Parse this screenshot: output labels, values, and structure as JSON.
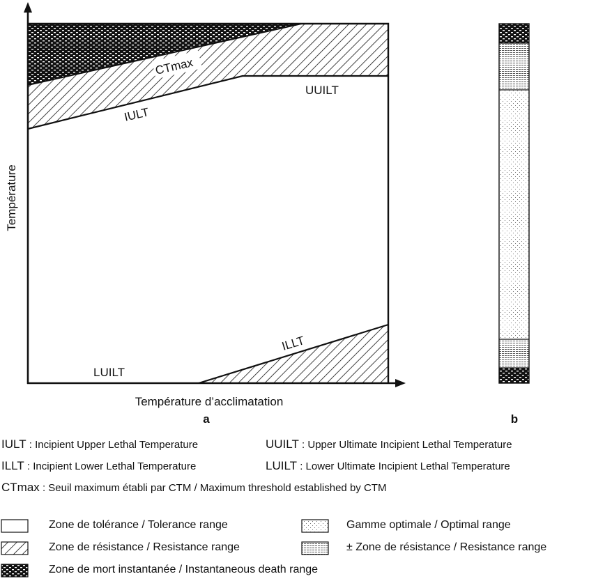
{
  "figure": {
    "panel_a": {
      "y_axis_label": "Température",
      "x_axis_label": "Température d’acclimatation",
      "panel_label": "a",
      "curve_labels": {
        "ctmax": "CTmax",
        "uuilt": "UUILT",
        "iult": "IULT",
        "illt": "ILLT",
        "luilt": "LUILT"
      }
    },
    "panel_b": {
      "panel_label": "b"
    }
  },
  "abbreviations": [
    {
      "key": "IULT",
      "text": " : Incipient Upper Lethal Temperature"
    },
    {
      "key": "UUILT",
      "text": " : Upper Ultimate Incipient Lethal Temperature"
    },
    {
      "key": "ILLT",
      "text": " : Incipient Lower Lethal Temperature"
    },
    {
      "key": "LUILT",
      "text": " : Lower Ultimate Incipient Lethal Temperature"
    },
    {
      "key": "CTmax",
      "text": " : Seuil maximum établi par CTM / Maximum threshold established by CTM"
    }
  ],
  "legend": [
    {
      "pattern": "blank",
      "label": "Zone de tolérance / Tolerance range"
    },
    {
      "pattern": "dots",
      "label": "Gamme optimale / Optimal range"
    },
    {
      "pattern": "hatch",
      "label": "Zone de résistance / Resistance range"
    },
    {
      "pattern": "lines",
      "label": "± Zone de résistance / Resistance range"
    },
    {
      "pattern": "checker",
      "label": "Zone de mort instantanée / Instantaneous death range"
    }
  ]
}
